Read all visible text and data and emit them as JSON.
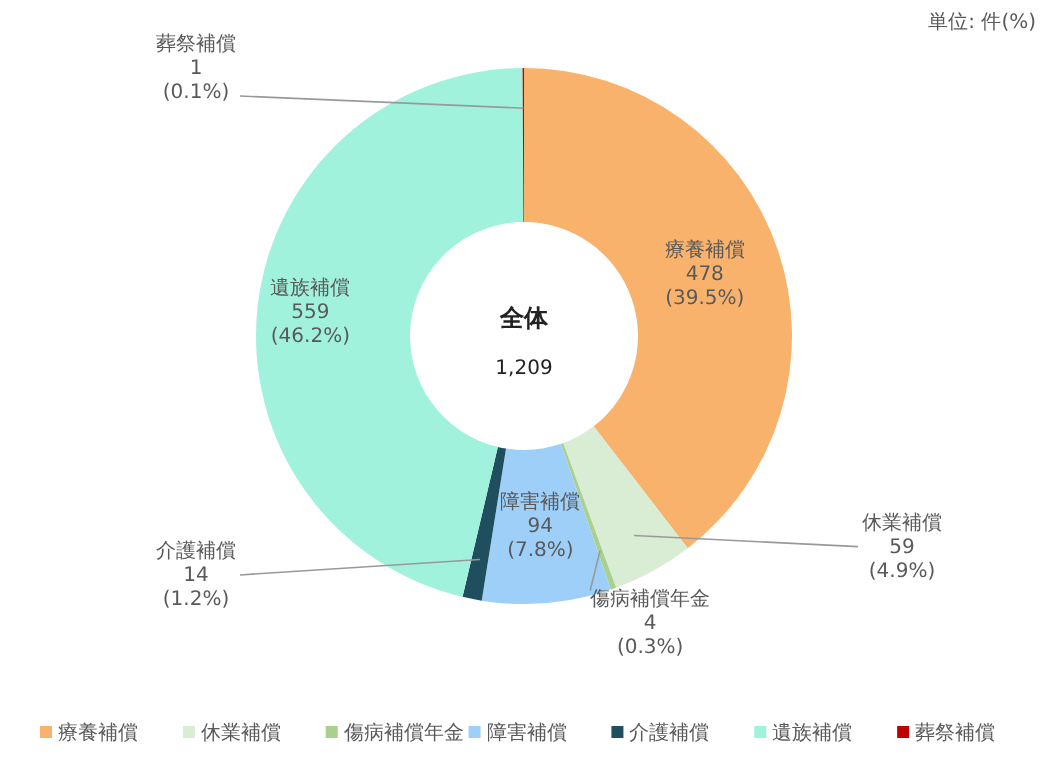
{
  "chart_data": {
    "type": "donut",
    "categories": [
      "療養補償",
      "休業補償",
      "傷病補償年金",
      "障害補償",
      "介護補償",
      "遺族補償",
      "葬祭補償"
    ],
    "values": [
      478,
      59,
      4,
      94,
      14,
      559,
      1
    ],
    "colors": [
      "#f9b26b",
      "#d9ecd4",
      "#a9d08e",
      "#9dcff8",
      "#1f4e5f",
      "#a0f2dc",
      "#c00000"
    ],
    "value_labels": [
      "478 (39.5%)",
      "59 (4.9%)",
      "4 (0.3%)",
      "94 (7.8%)",
      "14 (1.2%)",
      "559 (46.2%)",
      "1 (0.1%)"
    ],
    "legend": "bottom",
    "annotations": [
      "全体",
      "1,209",
      "単位: 件(%)"
    ]
  }
}
